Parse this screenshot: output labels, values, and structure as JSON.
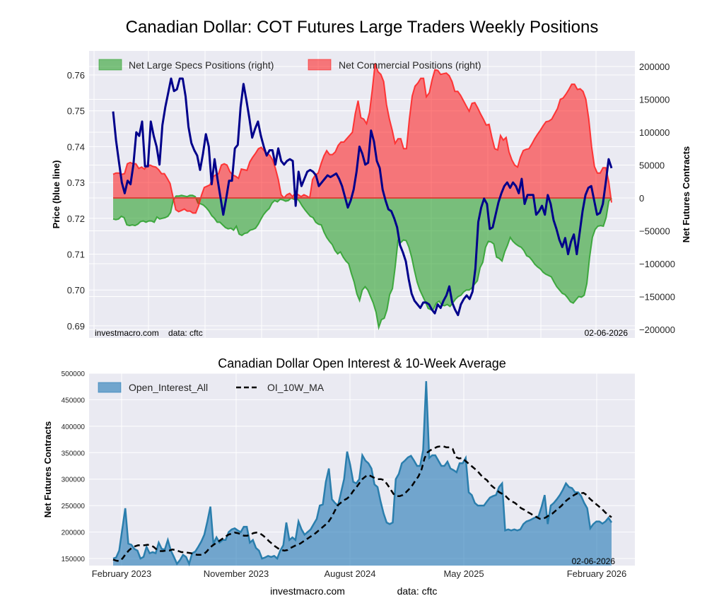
{
  "chart_data": [
    {
      "type": "area",
      "title": "Canadian Dollar: COT Futures Large Traders Weekly Positions",
      "ylabel": "Price (blue line)",
      "ylabel_right": "Net Futures Contracts",
      "ylim": [
        0.6885,
        0.7665
      ],
      "ylim_right": [
        -205000,
        200000
      ],
      "yticks": [
        "0.69",
        "0.70",
        "0.71",
        "0.72",
        "0.73",
        "0.74",
        "0.75",
        "0.76"
      ],
      "yticks_right": [
        "200000",
        "150000",
        "100000",
        "50000",
        "0",
        "−50000",
        "−100000",
        "−150000",
        "−200000"
      ],
      "grid": true,
      "legend_position": "top-left",
      "annotation_left": "investmacro.com    data: cftc",
      "annotation_right": "02-06-2026",
      "x_start": "2023-02",
      "x_end": "2026-02-06",
      "frequency": "weekly",
      "series": [
        {
          "name": "Net Large Specs Positions (right)",
          "kind": "area",
          "color": "#2ca02c",
          "values": [
            -32000,
            -33000,
            -32000,
            -28000,
            -30000,
            -41000,
            -42000,
            -41000,
            -42000,
            -40000,
            -36000,
            -35000,
            -37000,
            -35000,
            -35000,
            -37000,
            -29000,
            -32000,
            -31000,
            -30000,
            -28000,
            -22000,
            -3000,
            3000,
            3000,
            4000,
            3000,
            2000,
            4000,
            4000,
            2000,
            -8000,
            -9000,
            -11000,
            -15000,
            -20000,
            -27000,
            -31000,
            -37000,
            -37000,
            -41000,
            -45000,
            -47000,
            -46000,
            -49000,
            -43000,
            -55000,
            -57000,
            -54000,
            -53000,
            -49000,
            -48000,
            -46000,
            -40000,
            -32000,
            -25000,
            -20000,
            -16000,
            -8000,
            -4000,
            -6000,
            -2000,
            -3000,
            -5000,
            -4000,
            0,
            -2000,
            0,
            -5000,
            -12000,
            -18000,
            -23000,
            -28000,
            -30000,
            -37000,
            -40000,
            -41000,
            -52000,
            -60000,
            -66000,
            -71000,
            -80000,
            -85000,
            -82000,
            -90000,
            -96000,
            -100000,
            -115000,
            -128000,
            -146000,
            -156000,
            -140000,
            -135000,
            -140000,
            -150000,
            -160000,
            -174000,
            -197000,
            -185000,
            -183000,
            -170000,
            -147000,
            -138000,
            -105000,
            -65000,
            -68000,
            -64000,
            -65000,
            -75000,
            -90000,
            -110000,
            -128000,
            -140000,
            -149000,
            -158000,
            -168000,
            -170000,
            -169000,
            -160000,
            -157000,
            -163000,
            -164000,
            -162000,
            -165000,
            -160000,
            -154000,
            -150000,
            -148000,
            -143000,
            -140000,
            -140000,
            -137000,
            -131000,
            -126000,
            -106000,
            -98000,
            -75000,
            -66000,
            -67000,
            -70000,
            -90000,
            -92000,
            -96000,
            -82000,
            -72000,
            -60000,
            -66000,
            -70000,
            -73000,
            -75000,
            -80000,
            -88000,
            -90000,
            -95000,
            -101000,
            -105000,
            -108000,
            -113000,
            -116000,
            -118000,
            -120000,
            -128000,
            -135000,
            -140000,
            -145000,
            -147000,
            -152000,
            -158000,
            -160000,
            -155000,
            -150000,
            -151000,
            -148000,
            -130000,
            -90000,
            -60000,
            -48000,
            -43000,
            -42000,
            -43000,
            -30000,
            -5000,
            0
          ]
        },
        {
          "name": "Net Commercial Positions (right)",
          "kind": "area",
          "color": "#ff0000",
          "values": [
            36000,
            38000,
            38000,
            36000,
            37000,
            52000,
            54000,
            52000,
            52000,
            45000,
            47000,
            44000,
            49000,
            50000,
            48000,
            47000,
            43000,
            37000,
            37000,
            30000,
            22000,
            2000,
            -18000,
            -21000,
            -19000,
            -17000,
            -20000,
            -20000,
            -23000,
            -23000,
            -12000,
            4000,
            16000,
            18000,
            20000,
            32000,
            35000,
            37000,
            50000,
            52000,
            50000,
            40000,
            35000,
            33000,
            30000,
            44000,
            43000,
            42000,
            55000,
            62000,
            68000,
            75000,
            77000,
            72000,
            68000,
            65000,
            58000,
            45000,
            28000,
            5000,
            0,
            5000,
            7000,
            2000,
            8000,
            5000,
            2000,
            5000,
            3000,
            0,
            28000,
            35000,
            38000,
            52000,
            64000,
            72000,
            66000,
            66000,
            70000,
            80000,
            85000,
            85000,
            90000,
            95000,
            100000,
            128000,
            148000,
            122000,
            120000,
            113000,
            130000,
            165000,
            205000,
            192000,
            188000,
            177000,
            142000,
            120000,
            103000,
            83000,
            90000,
            90000,
            75000,
            75000,
            120000,
            155000,
            170000,
            175000,
            182000,
            182000,
            154000,
            160000,
            180000,
            195000,
            194000,
            188000,
            189000,
            190000,
            186000,
            177000,
            162000,
            162000,
            156000,
            148000,
            140000,
            132000,
            144000,
            145000,
            137000,
            128000,
            120000,
            111000,
            112000,
            92000,
            75000,
            73000,
            95000,
            88000,
            92000,
            70000,
            58000,
            50000,
            47000,
            62000,
            72000,
            74000,
            75000,
            82000,
            90000,
            97000,
            103000,
            110000,
            116000,
            117000,
            120000,
            128000,
            136000,
            150000,
            152000,
            158000,
            165000,
            173000,
            173000,
            165000,
            166000,
            162000,
            150000,
            120000,
            78000,
            48000,
            38000,
            38000,
            46000,
            46000,
            25000,
            -7000
          ]
        },
        {
          "name": "Price (blue line)",
          "kind": "line",
          "color": "#00008b",
          "values": [
            0.7498,
            0.7418,
            0.7358,
            0.73,
            0.727,
            0.7305,
            0.7295,
            0.735,
            0.744,
            0.743,
            0.747,
            0.7345,
            0.7345,
            0.747,
            0.743,
            0.74,
            0.735,
            0.746,
            0.751,
            0.755,
            0.759,
            0.7555,
            0.756,
            0.759,
            0.759,
            0.754,
            0.7455,
            0.741,
            0.739,
            0.7375,
            0.7335,
            0.738,
            0.7435,
            0.74,
            0.7295,
            0.7365,
            0.731,
            0.726,
            0.721,
            0.7255,
            0.7305,
            0.7305,
            0.7395,
            0.7405,
            0.751,
            0.7575,
            0.753,
            0.748,
            0.7425,
            0.745,
            0.747,
            0.743,
            0.74,
            0.7375,
            0.739,
            0.739,
            0.735,
            0.7395,
            0.736,
            0.735,
            0.736,
            0.7365,
            0.736,
            0.7235,
            0.733,
            0.729,
            0.731,
            0.733,
            0.7335,
            0.733,
            0.732,
            0.729,
            0.73,
            0.731,
            0.732,
            0.7315,
            0.732,
            0.7325,
            0.731,
            0.729,
            0.726,
            0.723,
            0.725,
            0.728,
            0.733,
            0.74,
            0.738,
            0.735,
            0.7355,
            0.7445,
            0.7415,
            0.736,
            0.734,
            0.728,
            0.725,
            0.7225,
            0.722,
            0.72,
            0.7175,
            0.7125,
            0.7105,
            0.708,
            0.703,
            0.699,
            0.697,
            0.696,
            0.695,
            0.6965,
            0.6965,
            0.696,
            0.6945,
            0.6935,
            0.696,
            0.695,
            0.697,
            0.6985,
            0.701,
            0.6965,
            0.6945,
            0.693,
            0.696,
            0.6975,
            0.6985,
            0.6975,
            0.6995,
            0.706,
            0.719,
            0.723,
            0.7255,
            0.724,
            0.717,
            0.7175,
            0.721,
            0.7245,
            0.727,
            0.729,
            0.73,
            0.7285,
            0.73,
            0.729,
            0.727,
            0.731,
            0.724,
            0.7265,
            0.7265,
            0.7265,
            0.721,
            0.722,
            0.7235,
            0.721,
            0.7265,
            0.724,
            0.7195,
            0.717,
            0.714,
            0.712,
            0.7145,
            0.71,
            0.7135,
            0.7155,
            0.71,
            0.716,
            0.722,
            0.7265,
            0.7285,
            0.729,
            0.725,
            0.721,
            0.7215,
            0.724,
            0.73,
            0.7365,
            0.734
          ]
        }
      ]
    },
    {
      "type": "area",
      "title": "Canadian Dollar Open Interest & 10-Week Average",
      "ylabel": "Net Futures Contracts",
      "ylim": [
        135000,
        500000
      ],
      "yticks": [
        "150000",
        "200000",
        "250000",
        "300000",
        "350000",
        "400000",
        "450000",
        "500000"
      ],
      "xticks": [
        "February 2023",
        "November 2023",
        "August 2024",
        "May 2025",
        "February 2026"
      ],
      "grid": true,
      "legend_position": "top-left",
      "annotation_right": "02-06-2026",
      "series": [
        {
          "name": "Open_Interest_All",
          "kind": "area",
          "color": "#1f77b4",
          "values": [
            150000,
            152000,
            165000,
            205000,
            245000,
            178000,
            176000,
            168000,
            165000,
            150000,
            153000,
            172000,
            160000,
            162000,
            160000,
            180000,
            168000,
            167000,
            185000,
            165000,
            153000,
            140000,
            147000,
            157000,
            153000,
            140000,
            160000,
            163000,
            172000,
            182000,
            195000,
            220000,
            248000,
            178000,
            190000,
            180000,
            185000,
            185000,
            200000,
            205000,
            207000,
            203000,
            200000,
            210000,
            210000,
            180000,
            185000,
            170000,
            165000,
            150000,
            152000,
            155000,
            153000,
            155000,
            150000,
            165000,
            175000,
            218000,
            185000,
            190000,
            185000,
            220000,
            205000,
            195000,
            200000,
            205000,
            215000,
            225000,
            250000,
            252000,
            295000,
            320000,
            262000,
            255000,
            250000,
            275000,
            300000,
            352000,
            327000,
            295000,
            292000,
            300000,
            345000,
            335000,
            330000,
            320000,
            290000,
            285000,
            258000,
            235000,
            218000,
            215000,
            218000,
            300000,
            310000,
            330000,
            335000,
            341000,
            344000,
            335000,
            325000,
            325000,
            355000,
            485000,
            340000,
            345000,
            345000,
            335000,
            325000,
            325000,
            333000,
            320000,
            317000,
            313000,
            330000,
            330000,
            340000,
            275000,
            270000,
            255000,
            250000,
            250000,
            250000,
            258000,
            265000,
            268000,
            270000,
            285000,
            292000,
            203000,
            205000,
            203000,
            205000,
            203000,
            205000,
            215000,
            220000,
            222000,
            225000,
            228000,
            230000,
            248000,
            270000,
            215000,
            250000,
            255000,
            262000,
            270000,
            280000,
            292000,
            285000,
            283000,
            275000,
            275000,
            268000,
            255000,
            245000,
            207000,
            215000,
            220000,
            220000,
            216000,
            220000,
            227000,
            218000
          ]
        },
        {
          "name": "OI_10W_MA",
          "kind": "line-dashed",
          "color": "#000000",
          "values": [
            148000,
            146000,
            145000,
            150000,
            158000,
            165000,
            170000,
            173000,
            175000,
            175000,
            175000,
            176000,
            175000,
            172000,
            167000,
            164000,
            164000,
            165000,
            165000,
            167000,
            166000,
            164000,
            162000,
            162000,
            161000,
            160000,
            158000,
            157000,
            157000,
            158000,
            163000,
            170000,
            175000,
            179000,
            183000,
            187000,
            191000,
            195000,
            197000,
            199000,
            198000,
            196000,
            193000,
            193000,
            195000,
            198000,
            199000,
            198000,
            194000,
            189000,
            183000,
            178000,
            173000,
            169000,
            166000,
            165000,
            166000,
            170000,
            173000,
            176000,
            178000,
            182000,
            186000,
            190000,
            194000,
            198000,
            203000,
            208000,
            213000,
            218000,
            227000,
            238000,
            250000,
            255000,
            260000,
            263000,
            268000,
            277000,
            284000,
            292000,
            300000,
            305000,
            308000,
            305000,
            302000,
            300000,
            300000,
            298000,
            290000,
            281000,
            272000,
            268000,
            268000,
            270000,
            275000,
            281000,
            288000,
            297000,
            305000,
            318000,
            340000,
            351000,
            355000,
            358000,
            361000,
            362000,
            362000,
            360000,
            360000,
            357000,
            342000,
            339000,
            340000,
            335000,
            330000,
            325000,
            320000,
            315000,
            308000,
            302000,
            298000,
            290000,
            285000,
            280000,
            275000,
            272000,
            268000,
            262000,
            258000,
            255000,
            250000,
            245000,
            242000,
            238000,
            235000,
            231000,
            228000,
            225000,
            225000,
            228000,
            232000,
            235000,
            240000,
            245000,
            250000,
            257000,
            262000,
            266000,
            270000,
            273000,
            273000,
            274000,
            270000,
            263000,
            258000,
            253000,
            248000,
            243000,
            237000,
            232000,
            228000
          ]
        }
      ]
    }
  ],
  "footer": {
    "site": "investmacro.com",
    "source": "data: cftc"
  }
}
